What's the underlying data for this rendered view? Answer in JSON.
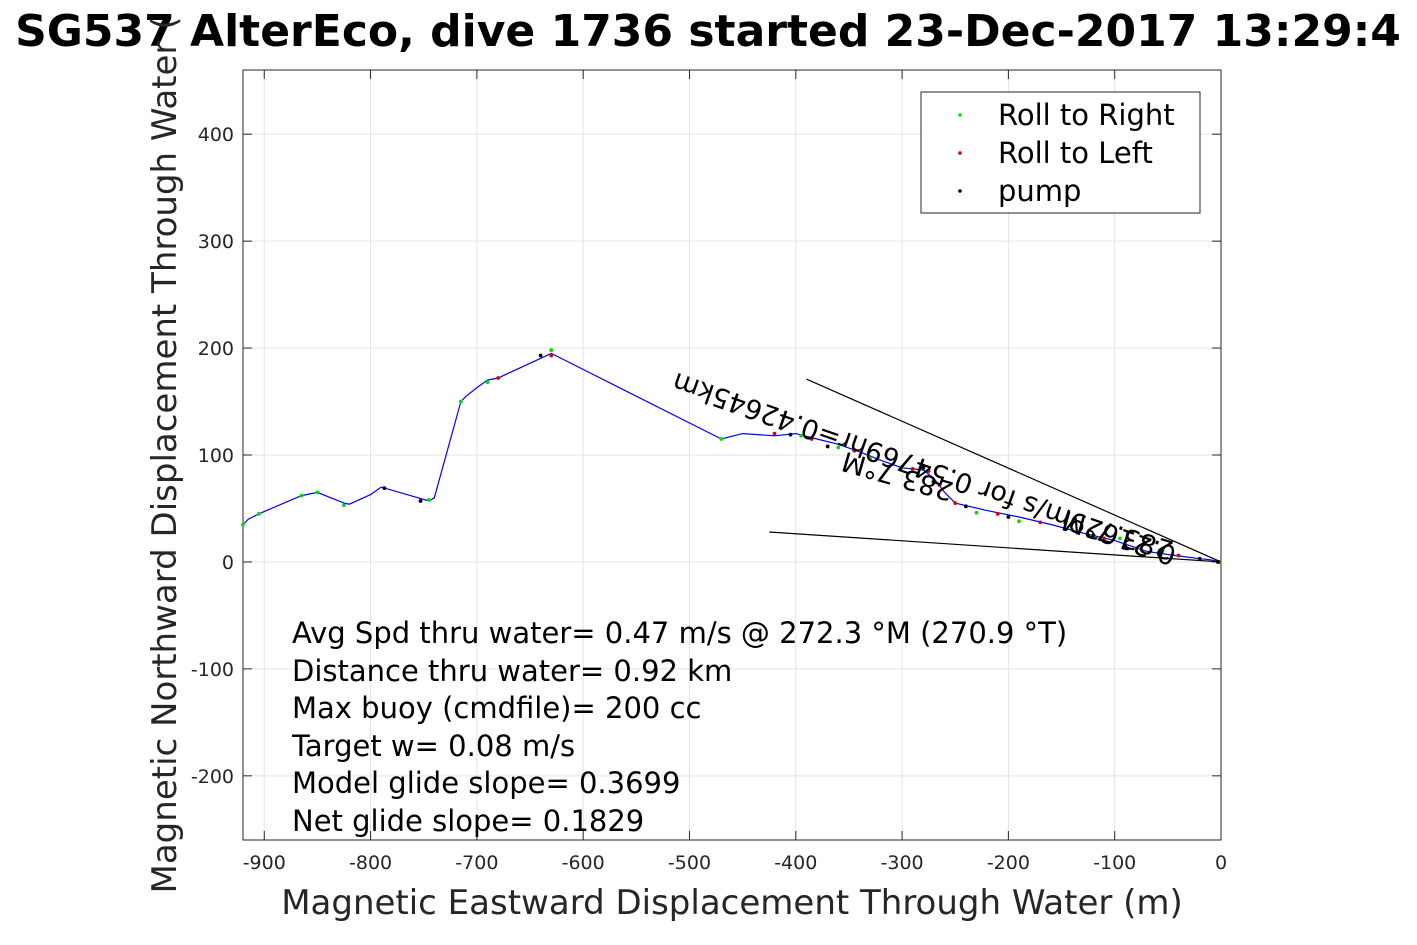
{
  "chart_data": {
    "type": "line",
    "title": "SG537 AlterEco, dive 1736 started 23-Dec-2017 13:29:4",
    "xlabel": "Magnetic Eastward Displacement Through Water (m)",
    "ylabel": "Magnetic Northward Displacement Through Water (",
    "xlim": [
      -920,
      0
    ],
    "ylim": [
      -260,
      460
    ],
    "xticks": [
      -900,
      -800,
      -700,
      -600,
      -500,
      -400,
      -300,
      -200,
      -100,
      0
    ],
    "yticks": [
      -200,
      -100,
      0,
      100,
      200,
      300,
      400
    ],
    "grid": true,
    "legend": {
      "placement": "top-right",
      "entries": [
        {
          "label": "Roll to Right",
          "color": "#00e000"
        },
        {
          "label": "Roll to Left",
          "color": "#e00000"
        },
        {
          "label": "pump",
          "color": "#000000"
        }
      ]
    },
    "series": [
      {
        "color": "#0000ff",
        "x": [
          0,
          -10,
          -20,
          -35,
          -50,
          -70,
          -100,
          -130,
          -160,
          -190,
          -220,
          -250,
          -260,
          -270,
          -280,
          -300,
          -320,
          -340,
          -360,
          -380,
          -400,
          -420,
          -450,
          -470,
          -630,
          -680,
          -690,
          -700,
          -710,
          -715,
          -740,
          -745,
          -790,
          -800,
          -820,
          -825,
          -850,
          -865,
          -905,
          -915,
          -920
        ],
        "y": [
          0,
          2,
          3,
          5,
          7,
          10,
          20,
          27,
          35,
          42,
          48,
          55,
          65,
          78,
          86,
          88,
          95,
          103,
          110,
          115,
          120,
          118,
          120,
          115,
          195,
          172,
          170,
          163,
          155,
          150,
          60,
          57,
          70,
          63,
          54,
          55,
          65,
          62,
          45,
          40,
          35
        ]
      }
    ],
    "markers": {
      "roll_right_x": [
        -1,
        -55,
        -95,
        -140,
        -190,
        -230,
        -300,
        -330,
        -360,
        -395,
        -470,
        -630,
        -690,
        -715,
        -745,
        -825,
        -850,
        -865,
        -905,
        -920
      ],
      "roll_right_y": [
        0,
        10,
        22,
        30,
        38,
        46,
        89,
        97,
        107,
        118,
        115,
        198,
        168,
        150,
        58,
        53,
        65,
        62,
        45,
        35
      ],
      "roll_left_x": [
        -2,
        -40,
        -110,
        -170,
        -210,
        -250,
        -265,
        -275,
        -290,
        -345,
        -385,
        -420,
        -630,
        -680
      ],
      "roll_left_y": [
        0,
        6,
        22,
        37,
        45,
        55,
        72,
        85,
        87,
        104,
        115,
        120,
        193,
        172
      ],
      "pump_x": [
        -3,
        -20,
        -120,
        -200,
        -240,
        -280,
        -370,
        -405,
        -640,
        -787,
        -753
      ],
      "pump_y": [
        0,
        3,
        25,
        42,
        52,
        88,
        108,
        119,
        193,
        69,
        57
      ]
    },
    "heading_lines": [
      {
        "x": [
          0,
          -390
        ],
        "y": [
          0,
          171
        ]
      },
      {
        "x": [
          0,
          -425
        ],
        "y": [
          0,
          28
        ]
      }
    ],
    "annotations": {
      "target_1": "0.21629m/s for 0.54769hr=0.42645km",
      "heading_1": "283.7°M",
      "heading_2": "283.7°M"
    },
    "notes": [
      "Avg Spd thru water=  0.47 m/s @ 272.3 °M (270.9 °T)",
      "Distance thru water=  0.92 km",
      "Max buoy (cmdfile)= 200 cc",
      "Target w= 0.08 m/s",
      "Model glide slope= 0.3699",
      "Net glide slope= 0.1829"
    ]
  }
}
